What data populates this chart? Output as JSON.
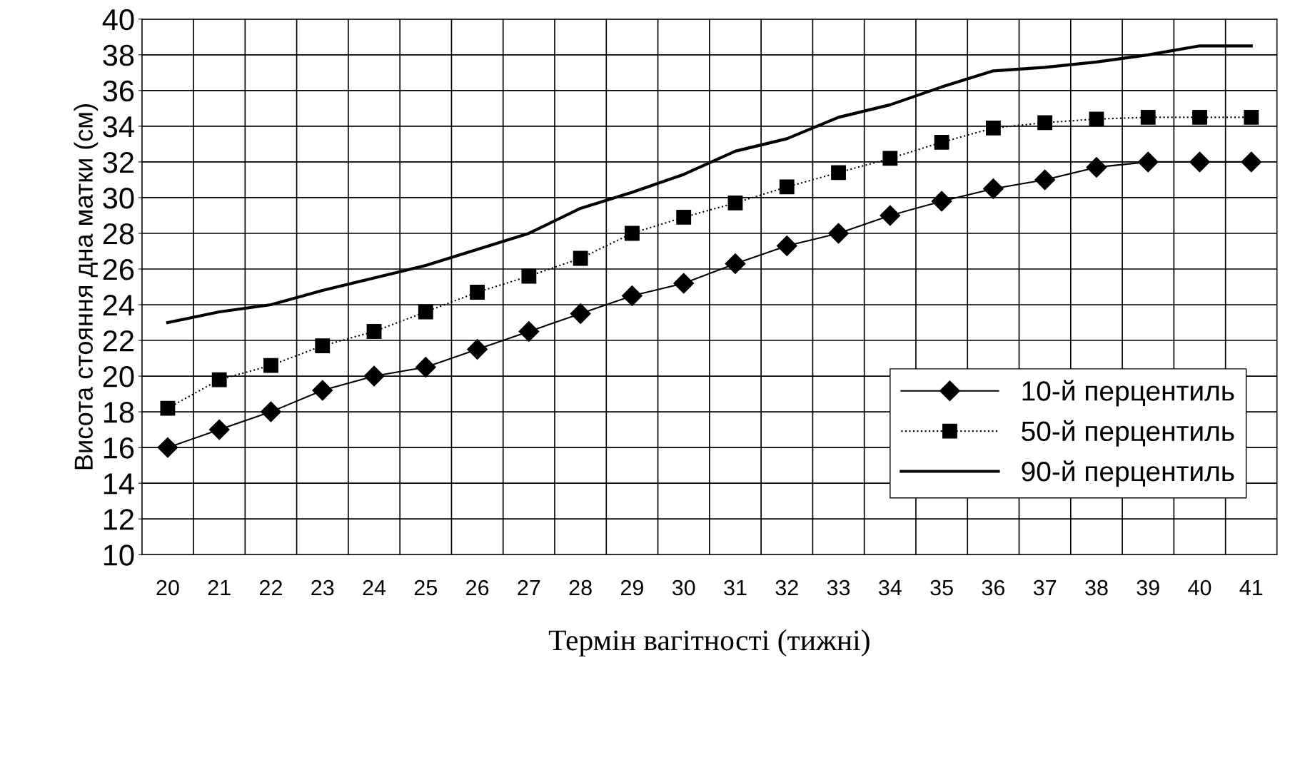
{
  "chart_data": {
    "type": "line",
    "xlabel": "Термін вагітності (тижні)",
    "ylabel": "Висота стояння дна матки (см)",
    "categories": [
      "20",
      "21",
      "22",
      "23",
      "24",
      "25",
      "26",
      "27",
      "28",
      "29",
      "30",
      "31",
      "32",
      "33",
      "34",
      "35",
      "36",
      "37",
      "38",
      "39",
      "40",
      "41"
    ],
    "series": [
      {
        "name": "10-й перцентиль",
        "color": "#000000",
        "marker": "diamond",
        "line_style": "solid",
        "values": [
          16,
          17,
          18,
          19.2,
          20,
          20.5,
          21.5,
          22.5,
          23.5,
          24.5,
          25.2,
          26.3,
          27.3,
          28,
          29,
          29.8,
          30.5,
          31,
          31.7,
          32,
          32,
          32
        ]
      },
      {
        "name": "50-й перцентиль",
        "color": "#000000",
        "marker": "square",
        "line_style": "dotted",
        "values": [
          18.2,
          19.8,
          20.6,
          21.7,
          22.5,
          23.6,
          24.7,
          25.6,
          26.6,
          28,
          28.9,
          29.7,
          30.6,
          31.4,
          32.2,
          33.1,
          33.9,
          34.2,
          34.4,
          34.5,
          34.5,
          34.5
        ]
      },
      {
        "name": "90-й перцентиль",
        "color": "#000000",
        "marker": "none",
        "line_style": "solid",
        "values": [
          23,
          23.6,
          24,
          24.8,
          25.5,
          26.2,
          27.1,
          28,
          29.4,
          30.3,
          31.3,
          32.6,
          33.3,
          34.5,
          35.2,
          36.2,
          37.1,
          37.3,
          37.6,
          38,
          38.5,
          38.5
        ]
      }
    ],
    "ylim": [
      10,
      40
    ],
    "yticks": [
      10,
      12,
      14,
      16,
      18,
      20,
      22,
      24,
      26,
      28,
      30,
      32,
      34,
      36,
      38,
      40
    ],
    "grid": true,
    "legend": "bottom right"
  }
}
